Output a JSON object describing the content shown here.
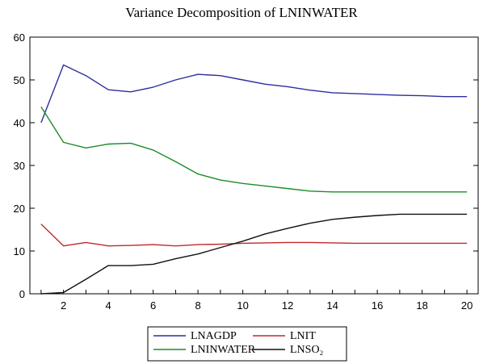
{
  "chart_data": {
    "type": "line",
    "title": "Variance Decomposition of LNINWATER",
    "xlabel": "",
    "ylabel": "",
    "x": [
      1,
      2,
      3,
      4,
      5,
      6,
      7,
      8,
      9,
      10,
      11,
      12,
      13,
      14,
      15,
      16,
      17,
      18,
      19,
      20
    ],
    "xlim": [
      0.5,
      20.5
    ],
    "ylim": [
      0,
      60
    ],
    "xticks": [
      "2",
      "4",
      "6",
      "8",
      "10",
      "12",
      "14",
      "16",
      "18",
      "20"
    ],
    "yticks": [
      "0",
      "10",
      "20",
      "30",
      "40",
      "50",
      "60"
    ],
    "grid": false,
    "legend_position": "bottom",
    "series": [
      {
        "name": "LNAGDP",
        "color": "#2e2e9e",
        "values": [
          40.0,
          53.5,
          51.0,
          47.7,
          47.2,
          48.3,
          50.0,
          51.3,
          51.0,
          50.0,
          49.0,
          48.4,
          47.6,
          47.0,
          46.8,
          46.6,
          46.4,
          46.3,
          46.1,
          46.1
        ]
      },
      {
        "name": "LNIT",
        "color": "#c0282e",
        "values": [
          16.3,
          11.2,
          12.0,
          11.2,
          11.3,
          11.5,
          11.2,
          11.5,
          11.6,
          11.8,
          11.9,
          12.0,
          12.0,
          11.9,
          11.8,
          11.8,
          11.8,
          11.8,
          11.8,
          11.8
        ]
      },
      {
        "name": "LNINWATER",
        "color": "#1e8c2a",
        "values": [
          43.7,
          35.4,
          34.1,
          35.0,
          35.2,
          33.6,
          30.9,
          28.0,
          26.6,
          25.8,
          25.2,
          24.6,
          24.0,
          23.8,
          23.8,
          23.8,
          23.8,
          23.8,
          23.8,
          23.8
        ]
      },
      {
        "name": "LNSO₂",
        "color": "#111111",
        "values": [
          0.0,
          0.3,
          3.4,
          6.6,
          6.6,
          6.9,
          8.2,
          9.3,
          10.8,
          12.3,
          14.0,
          15.3,
          16.5,
          17.4,
          17.9,
          18.3,
          18.6,
          18.6,
          18.6,
          18.6
        ]
      }
    ]
  }
}
